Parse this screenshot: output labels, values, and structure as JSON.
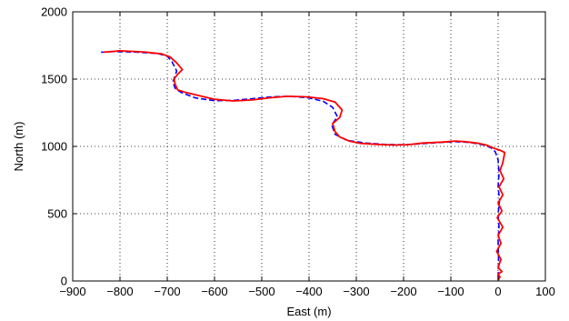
{
  "chart_data": {
    "type": "line",
    "title": "",
    "xlabel": "East (m)",
    "ylabel": "North (m)",
    "xlim": [
      -900,
      100
    ],
    "ylim": [
      0,
      2000
    ],
    "x_ticks": [
      -900,
      -800,
      -700,
      -600,
      -500,
      -400,
      -300,
      -200,
      -100,
      0,
      100
    ],
    "y_ticks": [
      0,
      500,
      1000,
      1500,
      2000
    ],
    "x_tick_labels": [
      "−900",
      "−800",
      "−700",
      "−600",
      "−500",
      "−400",
      "−300",
      "−200",
      "−100",
      "0",
      "100"
    ],
    "y_tick_labels": [
      "0",
      "500",
      "1000",
      "1500",
      "2000"
    ],
    "grid": true,
    "series": [
      {
        "color": "#0000ff",
        "style": "dashed",
        "x": [
          -840,
          -810,
          -760,
          -720,
          -700,
          -690,
          -680,
          -688,
          -683,
          -670,
          -640,
          -600,
          -560,
          -520,
          -480,
          -440,
          -400,
          -370,
          -350,
          -340,
          -352,
          -345,
          -320,
          -280,
          -240,
          -200,
          -160,
          -120,
          -90,
          -60,
          -30,
          -15,
          -6,
          0,
          2,
          0,
          3,
          0,
          2,
          0,
          1,
          0
        ],
        "y": [
          1700,
          1705,
          1700,
          1690,
          1670,
          1630,
          1560,
          1480,
          1430,
          1400,
          1360,
          1340,
          1342,
          1355,
          1368,
          1372,
          1360,
          1335,
          1290,
          1220,
          1160,
          1090,
          1045,
          1025,
          1015,
          1012,
          1020,
          1030,
          1035,
          1030,
          1010,
          990,
          960,
          900,
          800,
          700,
          600,
          500,
          400,
          300,
          150,
          20
        ]
      },
      {
        "color": "#ff0000",
        "style": "solid",
        "x": [
          -835,
          -800,
          -750,
          -712,
          -694,
          -680,
          -668,
          -678,
          -686,
          -683,
          -678,
          -660,
          -630,
          -600,
          -560,
          -520,
          -480,
          -445,
          -405,
          -370,
          -345,
          -330,
          -335,
          -350,
          -345,
          -335,
          -315,
          -290,
          -255,
          -220,
          -190,
          -160,
          -120,
          -90,
          -70,
          -45,
          -25,
          -8,
          5,
          14,
          10,
          4,
          12,
          2,
          10,
          0,
          8,
          -2,
          10,
          0,
          6,
          -3,
          6,
          0,
          8,
          0,
          4,
          0,
          3
        ],
        "y": [
          1700,
          1710,
          1702,
          1688,
          1665,
          1620,
          1570,
          1535,
          1500,
          1460,
          1420,
          1400,
          1375,
          1350,
          1338,
          1345,
          1362,
          1372,
          1368,
          1355,
          1330,
          1270,
          1215,
          1170,
          1110,
          1070,
          1040,
          1022,
          1015,
          1010,
          1013,
          1025,
          1032,
          1040,
          1035,
          1025,
          1010,
          985,
          970,
          955,
          880,
          820,
          760,
          700,
          640,
          580,
          520,
          470,
          400,
          340,
          280,
          220,
          160,
          100,
          70,
          50,
          30,
          15,
          10
        ]
      }
    ]
  }
}
